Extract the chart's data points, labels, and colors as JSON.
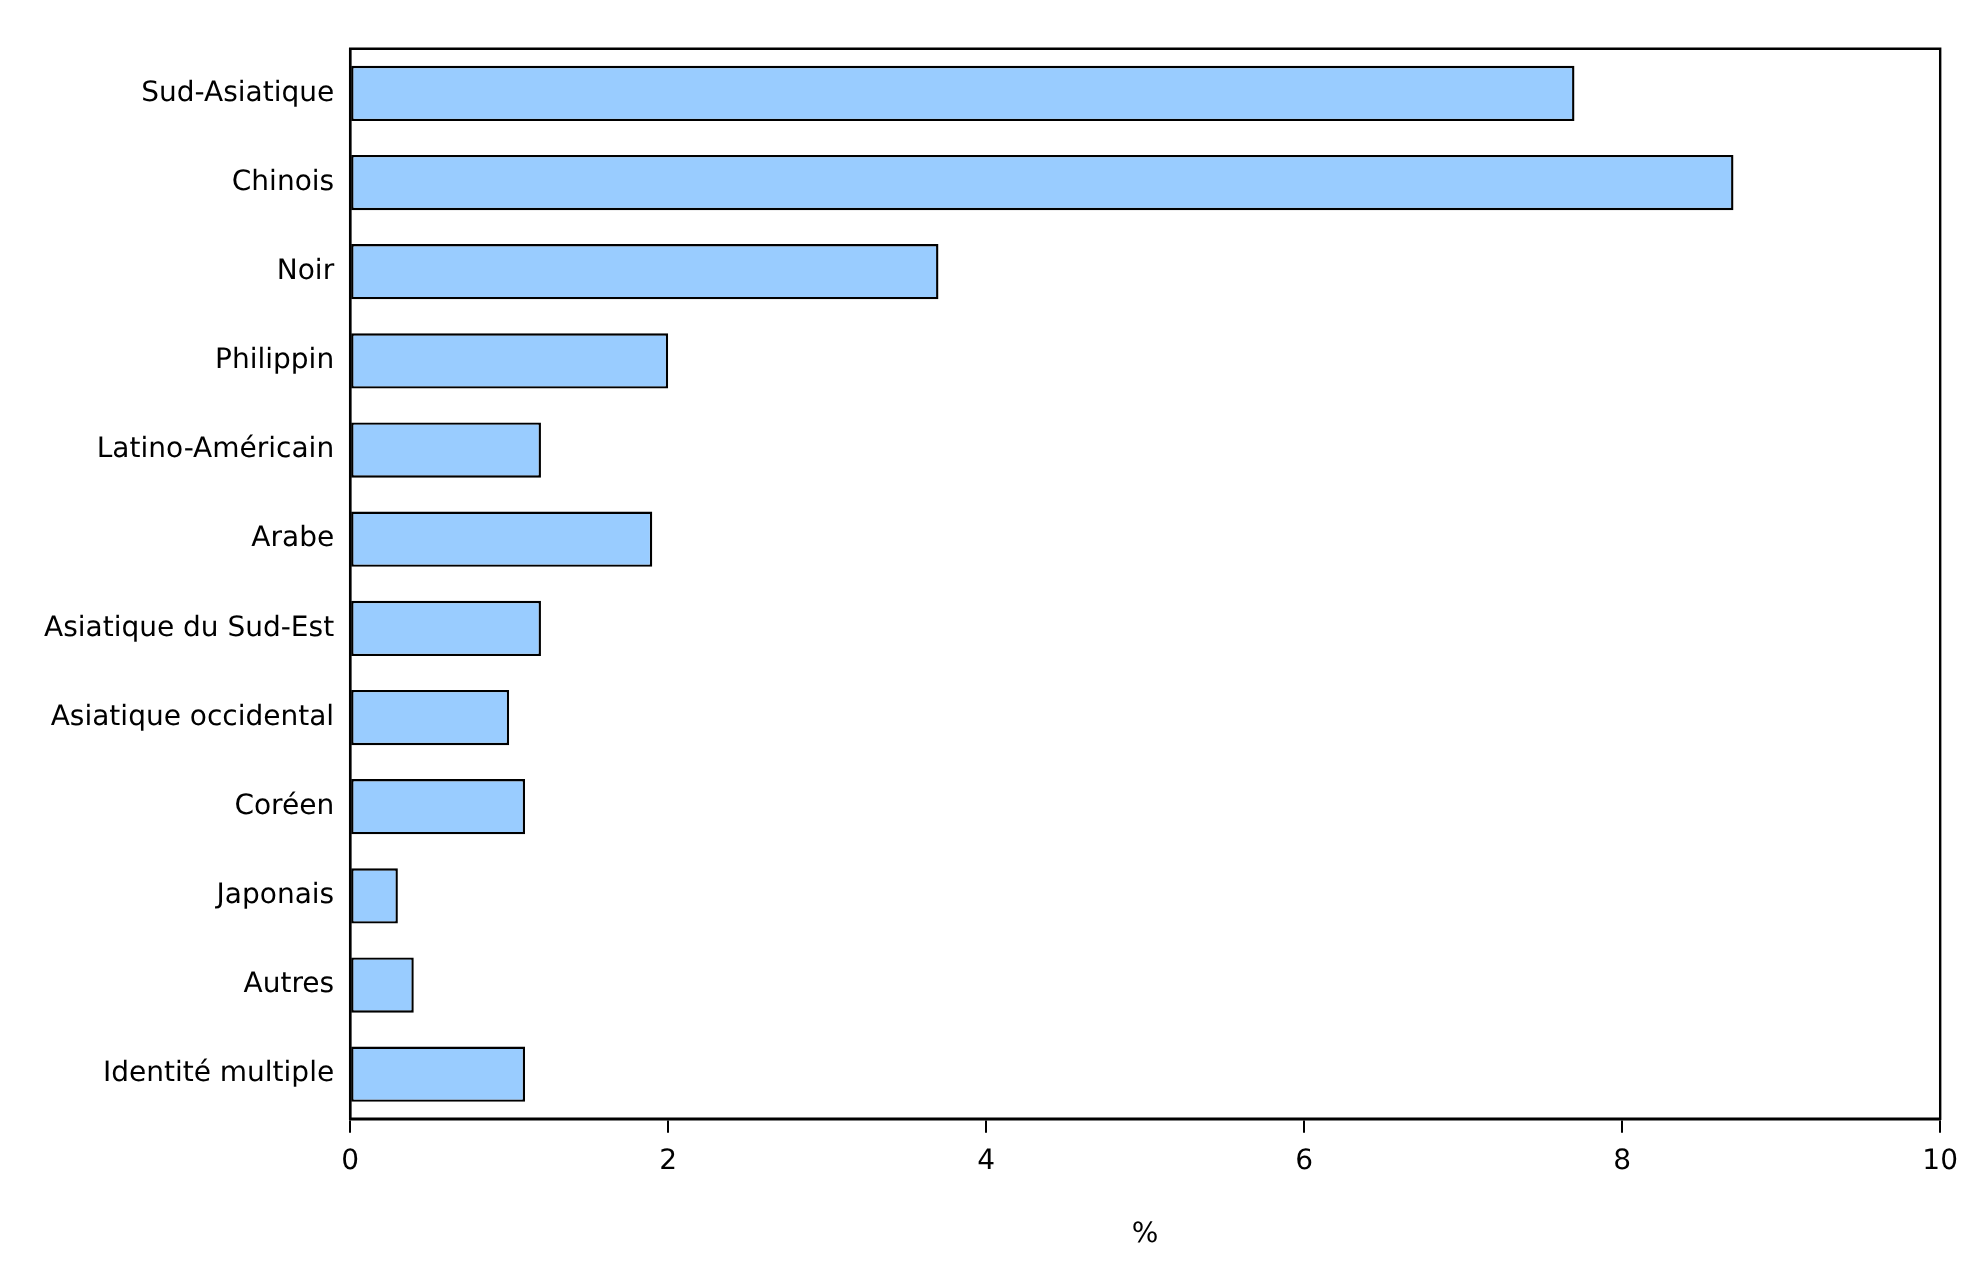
{
  "chart_data": {
    "type": "bar",
    "orientation": "horizontal",
    "xlabel": "%",
    "categories": [
      "Sud-Asiatique",
      "Chinois",
      "Noir",
      "Philippin",
      "Latino-Américain",
      "Arabe",
      "Asiatique du Sud-Est",
      "Asiatique occidental",
      "Coréen",
      "Japonais",
      "Autres",
      "Identité multiple"
    ],
    "values": [
      7.7,
      8.7,
      3.7,
      2.0,
      1.2,
      1.9,
      1.2,
      1.0,
      1.1,
      0.3,
      0.4,
      1.1
    ],
    "color": "#99ccff",
    "xlim": [
      0,
      10
    ],
    "xticks": [
      0,
      2,
      4,
      6,
      8,
      10
    ],
    "grid": false,
    "legend": false
  }
}
